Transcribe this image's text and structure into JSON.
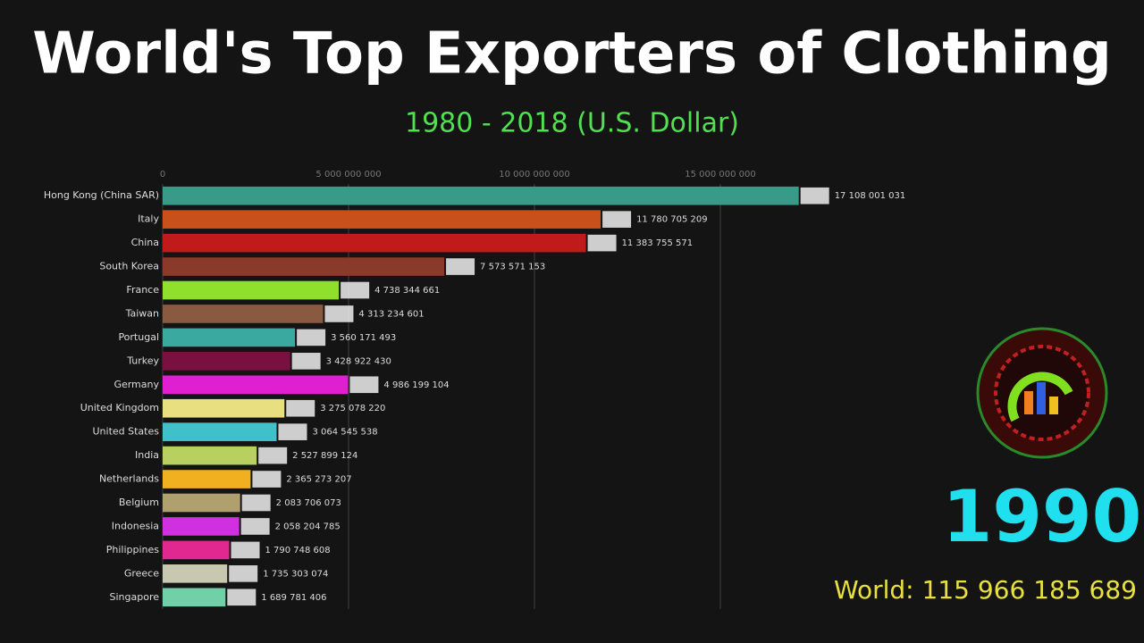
{
  "chart_data": {
    "type": "bar",
    "orientation": "horizontal",
    "title": "World's Top Exporters of Clothing",
    "subtitle": "1980 - 2018 (U.S. Dollar)",
    "year": "1990",
    "total_label": "World: 115 966 185 689",
    "categories": [
      "Hong Kong (China SAR)",
      "Italy",
      "China",
      "South Korea",
      "France",
      "Taiwan",
      "Portugal",
      "Turkey",
      "Germany",
      "United Kingdom",
      "United States",
      "India",
      "Netherlands",
      "Belgium",
      "Indonesia",
      "Philippines",
      "Greece",
      "Singapore"
    ],
    "values": [
      17108001031,
      11780705209,
      11383755571,
      7573571153,
      4738344661,
      4313234601,
      3560171493,
      3428922430,
      4986199104,
      3275078220,
      3064545538,
      2527899124,
      2365273207,
      2083706073,
      2058204785,
      1790748608,
      1735303074,
      1689781406
    ],
    "value_labels": [
      "17 108 001 031",
      "11 780 705 209",
      "11 383 755 571",
      "7 573 571 153",
      "4 738 344 661",
      "4 313 234 601",
      "3 560 171 493",
      "3 428 922 430",
      "4 986 199 104",
      "3 275 078 220",
      "3 064 545 538",
      "2 527 899 124",
      "2 365 273 207",
      "2 083 706 073",
      "2 058 204 785",
      "1 790 748 608",
      "1 735 303 074",
      "1 689 781 406"
    ],
    "colors": [
      "#3a9a8a",
      "#c8501a",
      "#c01a1a",
      "#8a3a2a",
      "#8ee02a",
      "#8a5a40",
      "#3aaaa0",
      "#7a1040",
      "#e020d0",
      "#e8e080",
      "#40c0c8",
      "#b8d060",
      "#f0b020",
      "#b0a070",
      "#d030e0",
      "#e02890",
      "#c8c8b0",
      "#70d0a8"
    ],
    "xlim": [
      0,
      25000000000
    ],
    "xticks": [
      0,
      {
        "value": 5000000000,
        "label": "5 000 000 000"
      },
      {
        "value": 10000000000,
        "label": "10 000 000 000"
      },
      {
        "value": 15000000000,
        "label": "15 000 000 000"
      }
    ],
    "grid": true
  }
}
